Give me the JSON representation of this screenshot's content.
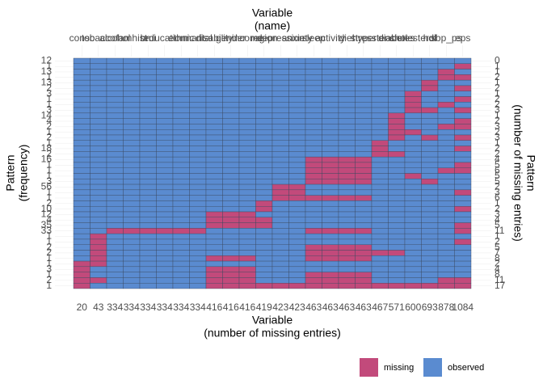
{
  "chart_data": {
    "type": "missing-pattern",
    "x_top_title": [
      "Variable",
      "(name)"
    ],
    "x_bottom_title": [
      "Variable",
      "(number of missing entries)"
    ],
    "y_left_title": [
      "Pattern",
      "(frequency)"
    ],
    "y_right_title": [
      "Pattern",
      "(number of missing entries)"
    ],
    "variables": [
      "consc",
      "tobacco",
      "alcohol",
      "famhist",
      "bmi",
      "education",
      "ethnic",
      "marital",
      "disability",
      "gender",
      "income",
      "region",
      "depression",
      "anxiety",
      "sleep",
      "activity",
      "diet",
      "stress",
      "hypertension",
      "diabetes",
      "cholesterol",
      "hdl",
      "sbp_ps",
      "eps"
    ],
    "missing_per_variable": [
      20,
      43,
      334,
      334,
      334,
      334,
      334,
      334,
      416,
      416,
      416,
      419,
      423,
      423,
      463,
      463,
      463,
      463,
      467,
      571,
      600,
      693,
      878,
      1084
    ],
    "frequency": [
      12,
      1,
      13,
      1,
      13,
      2,
      3,
      1,
      1,
      3,
      14,
      4,
      2,
      1,
      2,
      1,
      18,
      2,
      16,
      1,
      1,
      1,
      3,
      56,
      1,
      1,
      2,
      10,
      12,
      4,
      35,
      33,
      1,
      1,
      2,
      2,
      1,
      1,
      3,
      1,
      2,
      1
    ],
    "missing_per_pattern": [
      0,
      1,
      1,
      2,
      1,
      2,
      1,
      2,
      2,
      3,
      1,
      2,
      3,
      2,
      3,
      1,
      2,
      2,
      4,
      5,
      6,
      5,
      5,
      2,
      3,
      6,
      1,
      2,
      3,
      4,
      5,
      11,
      1,
      2,
      5,
      7,
      8,
      2,
      4,
      8,
      11,
      17
    ],
    "patterns": [
      [
        1,
        1,
        1,
        1,
        1,
        1,
        1,
        1,
        1,
        1,
        1,
        1,
        1,
        1,
        1,
        1,
        1,
        1,
        1,
        1,
        1,
        1,
        1,
        1
      ],
      [
        1,
        1,
        1,
        1,
        1,
        1,
        1,
        1,
        1,
        1,
        1,
        1,
        1,
        1,
        1,
        1,
        1,
        1,
        1,
        1,
        1,
        1,
        1,
        0
      ],
      [
        1,
        1,
        1,
        1,
        1,
        1,
        1,
        1,
        1,
        1,
        1,
        1,
        1,
        1,
        1,
        1,
        1,
        1,
        1,
        1,
        1,
        1,
        0,
        1
      ],
      [
        1,
        1,
        1,
        1,
        1,
        1,
        1,
        1,
        1,
        1,
        1,
        1,
        1,
        1,
        1,
        1,
        1,
        1,
        1,
        1,
        1,
        1,
        0,
        0
      ],
      [
        1,
        1,
        1,
        1,
        1,
        1,
        1,
        1,
        1,
        1,
        1,
        1,
        1,
        1,
        1,
        1,
        1,
        1,
        1,
        1,
        1,
        0,
        1,
        1
      ],
      [
        1,
        1,
        1,
        1,
        1,
        1,
        1,
        1,
        1,
        1,
        1,
        1,
        1,
        1,
        1,
        1,
        1,
        1,
        1,
        1,
        1,
        0,
        1,
        0
      ],
      [
        1,
        1,
        1,
        1,
        1,
        1,
        1,
        1,
        1,
        1,
        1,
        1,
        1,
        1,
        1,
        1,
        1,
        1,
        1,
        1,
        0,
        1,
        1,
        1
      ],
      [
        1,
        1,
        1,
        1,
        1,
        1,
        1,
        1,
        1,
        1,
        1,
        1,
        1,
        1,
        1,
        1,
        1,
        1,
        1,
        1,
        0,
        1,
        1,
        0
      ],
      [
        1,
        1,
        1,
        1,
        1,
        1,
        1,
        1,
        1,
        1,
        1,
        1,
        1,
        1,
        1,
        1,
        1,
        1,
        1,
        1,
        0,
        1,
        0,
        1
      ],
      [
        1,
        1,
        1,
        1,
        1,
        1,
        1,
        1,
        1,
        1,
        1,
        1,
        1,
        1,
        1,
        1,
        1,
        1,
        1,
        1,
        0,
        0,
        1,
        0
      ],
      [
        1,
        1,
        1,
        1,
        1,
        1,
        1,
        1,
        1,
        1,
        1,
        1,
        1,
        1,
        1,
        1,
        1,
        1,
        1,
        0,
        1,
        1,
        1,
        1
      ],
      [
        1,
        1,
        1,
        1,
        1,
        1,
        1,
        1,
        1,
        1,
        1,
        1,
        1,
        1,
        1,
        1,
        1,
        1,
        1,
        0,
        1,
        1,
        1,
        0
      ],
      [
        1,
        1,
        1,
        1,
        1,
        1,
        1,
        1,
        1,
        1,
        1,
        1,
        1,
        1,
        1,
        1,
        1,
        1,
        1,
        0,
        1,
        1,
        0,
        0
      ],
      [
        1,
        1,
        1,
        1,
        1,
        1,
        1,
        1,
        1,
        1,
        1,
        1,
        1,
        1,
        1,
        1,
        1,
        1,
        1,
        0,
        0,
        1,
        1,
        1
      ],
      [
        1,
        1,
        1,
        1,
        1,
        1,
        1,
        1,
        1,
        1,
        1,
        1,
        1,
        1,
        1,
        1,
        1,
        1,
        1,
        0,
        1,
        0,
        1,
        0
      ],
      [
        1,
        1,
        1,
        1,
        1,
        1,
        1,
        1,
        1,
        1,
        1,
        1,
        1,
        1,
        1,
        1,
        1,
        1,
        0,
        1,
        1,
        1,
        1,
        1
      ],
      [
        1,
        1,
        1,
        1,
        1,
        1,
        1,
        1,
        1,
        1,
        1,
        1,
        1,
        1,
        1,
        1,
        1,
        1,
        0,
        1,
        1,
        1,
        1,
        0
      ],
      [
        1,
        1,
        1,
        1,
        1,
        1,
        1,
        1,
        1,
        1,
        1,
        1,
        1,
        1,
        1,
        1,
        1,
        1,
        0,
        0,
        1,
        1,
        1,
        1
      ],
      [
        1,
        1,
        1,
        1,
        1,
        1,
        1,
        1,
        1,
        1,
        1,
        1,
        1,
        1,
        0,
        0,
        0,
        0,
        1,
        1,
        1,
        1,
        1,
        1
      ],
      [
        1,
        1,
        1,
        1,
        1,
        1,
        1,
        1,
        1,
        1,
        1,
        1,
        1,
        1,
        0,
        0,
        0,
        0,
        1,
        1,
        1,
        1,
        1,
        0
      ],
      [
        1,
        1,
        1,
        1,
        1,
        1,
        1,
        1,
        1,
        1,
        1,
        1,
        1,
        1,
        0,
        0,
        0,
        0,
        1,
        1,
        1,
        1,
        0,
        0
      ],
      [
        1,
        1,
        1,
        1,
        1,
        1,
        1,
        1,
        1,
        1,
        1,
        1,
        1,
        1,
        0,
        0,
        0,
        0,
        1,
        1,
        0,
        1,
        1,
        1
      ],
      [
        1,
        1,
        1,
        1,
        1,
        1,
        1,
        1,
        1,
        1,
        1,
        1,
        1,
        1,
        0,
        0,
        0,
        0,
        1,
        1,
        1,
        0,
        1,
        1
      ],
      [
        1,
        1,
        1,
        1,
        1,
        1,
        1,
        1,
        1,
        1,
        1,
        1,
        0,
        0,
        1,
        1,
        1,
        1,
        1,
        1,
        1,
        1,
        1,
        1
      ],
      [
        1,
        1,
        1,
        1,
        1,
        1,
        1,
        1,
        1,
        1,
        1,
        1,
        0,
        0,
        1,
        1,
        1,
        1,
        1,
        1,
        1,
        1,
        1,
        0
      ],
      [
        1,
        1,
        1,
        1,
        1,
        1,
        1,
        1,
        1,
        1,
        1,
        1,
        0,
        0,
        0,
        0,
        0,
        0,
        1,
        1,
        1,
        1,
        1,
        1
      ],
      [
        1,
        1,
        1,
        1,
        1,
        1,
        1,
        1,
        1,
        1,
        1,
        0,
        1,
        1,
        1,
        1,
        1,
        1,
        1,
        1,
        1,
        1,
        1,
        1
      ],
      [
        1,
        1,
        1,
        1,
        1,
        1,
        1,
        1,
        1,
        1,
        1,
        0,
        1,
        1,
        1,
        1,
        1,
        1,
        1,
        1,
        1,
        1,
        1,
        0
      ],
      [
        1,
        1,
        1,
        1,
        1,
        1,
        1,
        1,
        0,
        0,
        0,
        1,
        1,
        1,
        1,
        1,
        1,
        1,
        1,
        1,
        1,
        1,
        1,
        1
      ],
      [
        1,
        1,
        1,
        1,
        1,
        1,
        1,
        1,
        0,
        0,
        0,
        0,
        1,
        1,
        1,
        1,
        1,
        1,
        1,
        1,
        1,
        1,
        1,
        1
      ],
      [
        1,
        1,
        1,
        1,
        1,
        1,
        1,
        1,
        0,
        0,
        0,
        0,
        1,
        1,
        1,
        1,
        1,
        1,
        1,
        1,
        1,
        1,
        1,
        0
      ],
      [
        1,
        1,
        0,
        0,
        0,
        0,
        0,
        0,
        1,
        1,
        1,
        1,
        1,
        1,
        0,
        0,
        0,
        0,
        1,
        1,
        1,
        1,
        1,
        0
      ],
      [
        1,
        0,
        1,
        1,
        1,
        1,
        1,
        1,
        1,
        1,
        1,
        1,
        1,
        1,
        1,
        1,
        1,
        1,
        1,
        1,
        1,
        1,
        1,
        1
      ],
      [
        1,
        0,
        1,
        1,
        1,
        1,
        1,
        1,
        1,
        1,
        1,
        1,
        1,
        1,
        1,
        1,
        1,
        1,
        1,
        1,
        1,
        1,
        1,
        0
      ],
      [
        1,
        0,
        1,
        1,
        1,
        1,
        1,
        1,
        1,
        1,
        1,
        1,
        1,
        1,
        0,
        0,
        0,
        0,
        1,
        1,
        1,
        1,
        1,
        1
      ],
      [
        1,
        0,
        1,
        1,
        1,
        1,
        1,
        1,
        1,
        1,
        1,
        1,
        1,
        1,
        0,
        0,
        0,
        0,
        0,
        0,
        1,
        1,
        1,
        1
      ],
      [
        1,
        0,
        1,
        1,
        1,
        1,
        1,
        1,
        0,
        0,
        0,
        1,
        1,
        1,
        0,
        0,
        0,
        0,
        1,
        1,
        1,
        1,
        1,
        1
      ],
      [
        0,
        0,
        1,
        1,
        1,
        1,
        1,
        1,
        1,
        1,
        1,
        1,
        1,
        1,
        1,
        1,
        1,
        1,
        1,
        1,
        1,
        1,
        1,
        1
      ],
      [
        0,
        1,
        1,
        1,
        1,
        1,
        1,
        1,
        0,
        0,
        0,
        1,
        1,
        1,
        1,
        1,
        1,
        1,
        1,
        1,
        1,
        1,
        1,
        1
      ],
      [
        0,
        1,
        1,
        1,
        1,
        1,
        1,
        1,
        0,
        0,
        0,
        1,
        1,
        1,
        0,
        0,
        0,
        0,
        1,
        1,
        1,
        1,
        1,
        1
      ],
      [
        0,
        0,
        1,
        1,
        1,
        1,
        1,
        1,
        0,
        0,
        0,
        1,
        1,
        1,
        0,
        0,
        0,
        0,
        1,
        1,
        1,
        1,
        0,
        0
      ],
      [
        0,
        1,
        1,
        1,
        1,
        1,
        1,
        1,
        0,
        0,
        0,
        0,
        0,
        0,
        0,
        0,
        0,
        0,
        0,
        0,
        0,
        0,
        0,
        0
      ]
    ],
    "legend": [
      "missing",
      "observed"
    ],
    "colors": {
      "missing": "#c24a7b",
      "observed": "#5a8bd0"
    }
  }
}
